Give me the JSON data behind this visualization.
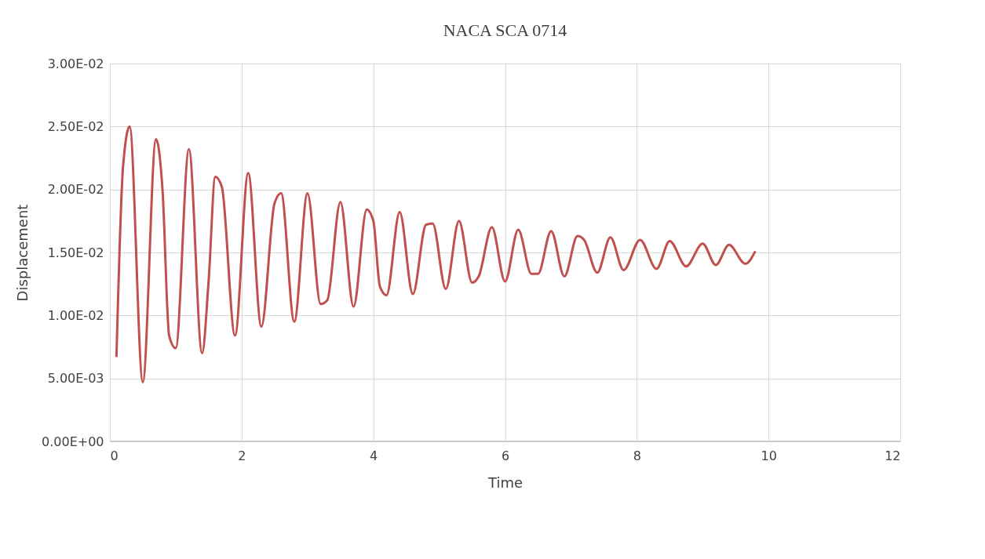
{
  "chart_data": {
    "type": "line",
    "title": "NACA SCA 0714",
    "xlabel": "Time",
    "ylabel": "Displacement",
    "series": [
      {
        "color": "#c0504d",
        "x": [
          0.1,
          0.2,
          0.3,
          0.5,
          0.7,
          0.8,
          0.9,
          1.0,
          1.2,
          1.4,
          1.5,
          1.6,
          1.7,
          1.9,
          2.1,
          2.3,
          2.5,
          2.6,
          2.8,
          3.0,
          3.2,
          3.3,
          3.5,
          3.7,
          3.9,
          4.0,
          4.1,
          4.2,
          4.4,
          4.6,
          4.8,
          4.9,
          5.1,
          5.3,
          5.5,
          5.6,
          5.8,
          6.0,
          6.2,
          6.4,
          6.5,
          6.7,
          6.9,
          7.1,
          7.2,
          7.4,
          7.6,
          7.8,
          8.05,
          8.3,
          8.5,
          8.75,
          9.0,
          9.2,
          9.4,
          9.65,
          9.8
        ],
        "values": [
          0.0067,
          0.0218,
          0.025,
          0.0047,
          0.024,
          0.0199,
          0.0084,
          0.0074,
          0.0232,
          0.007,
          0.0128,
          0.021,
          0.0202,
          0.0084,
          0.0213,
          0.0091,
          0.0189,
          0.0197,
          0.0095,
          0.0197,
          0.0109,
          0.0112,
          0.019,
          0.0107,
          0.0184,
          0.0175,
          0.0123,
          0.0116,
          0.0182,
          0.0117,
          0.0172,
          0.0173,
          0.0121,
          0.0175,
          0.0126,
          0.0131,
          0.017,
          0.0127,
          0.0168,
          0.0133,
          0.0133,
          0.0167,
          0.0131,
          0.0163,
          0.016,
          0.0134,
          0.0162,
          0.0136,
          0.016,
          0.0137,
          0.0159,
          0.0139,
          0.0157,
          0.014,
          0.0156,
          0.0141,
          0.0151
        ]
      }
    ],
    "xlim": [
      0,
      12
    ],
    "xticks": [
      0,
      2,
      4,
      6,
      8,
      10,
      12
    ],
    "ylim": [
      0,
      0.03
    ],
    "yticks": [
      {
        "value": 0,
        "label": "0.00E+00"
      },
      {
        "value": 0.005,
        "label": "5.00E-03"
      },
      {
        "value": 0.01,
        "label": "1.00E-02"
      },
      {
        "value": 0.015,
        "label": "1.50E-02"
      },
      {
        "value": 0.02,
        "label": "2.00E-02"
      },
      {
        "value": 0.025,
        "label": "2.50E-02"
      },
      {
        "value": 0.03,
        "label": "3.00E-02"
      }
    ],
    "grid": true,
    "legend": false,
    "marker": "none",
    "line_style": "solid"
  }
}
